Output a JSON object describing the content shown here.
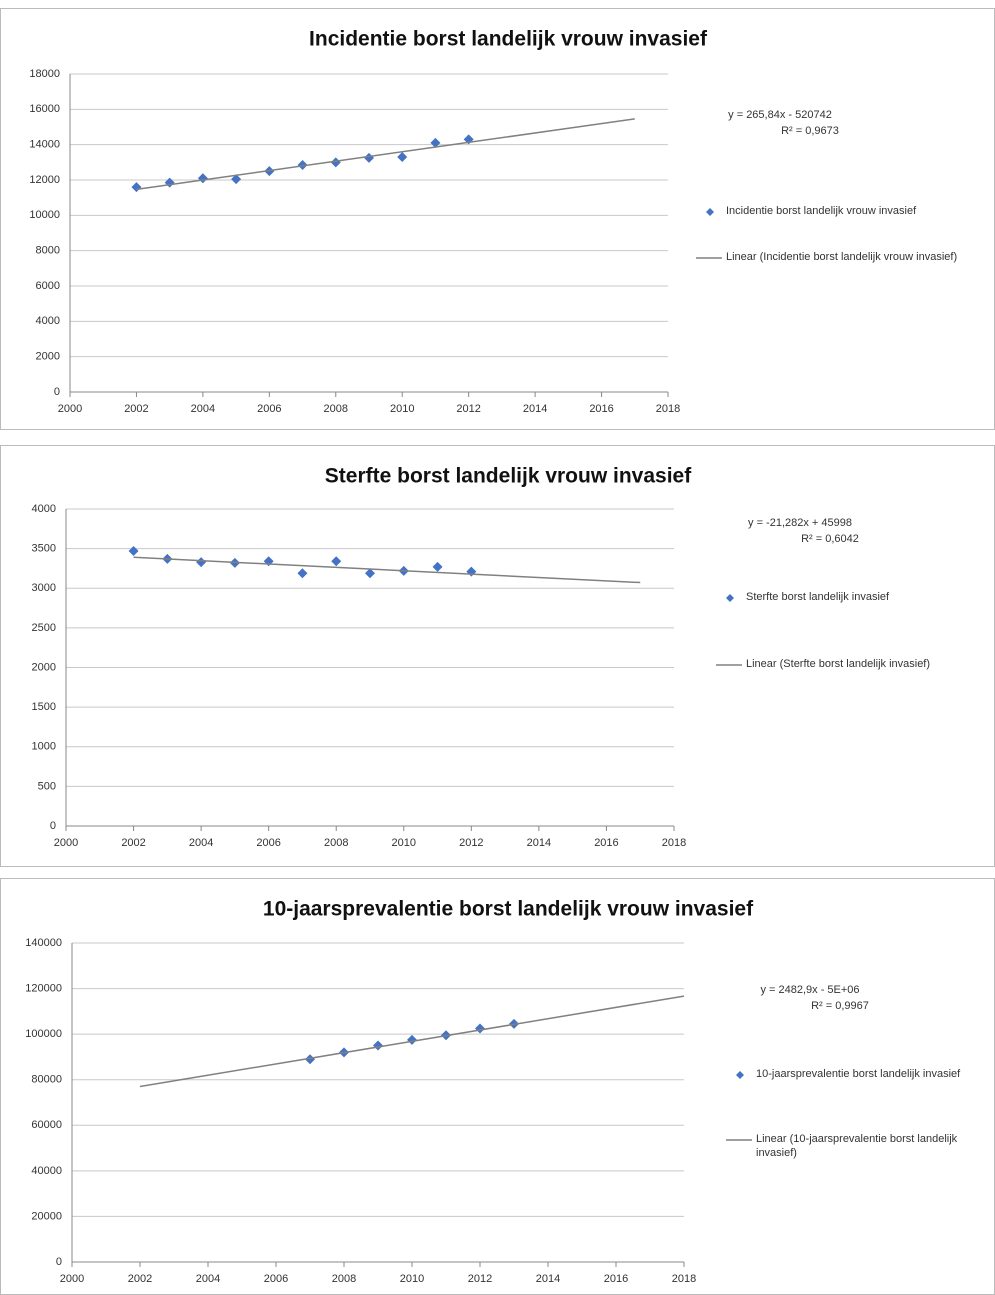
{
  "chart_data": [
    {
      "type": "scatter",
      "title": "Incidentie borst landelijk vrouw invasief",
      "annotations": [
        "y = 265,84x - 520742",
        "R² = 0,9673"
      ],
      "series": [
        {
          "name": "Incidentie borst landelijk vrouw invasief",
          "color": "#4472c4",
          "x": [
            2002,
            2003,
            2004,
            2005,
            2006,
            2007,
            2008,
            2009,
            2010,
            2011,
            2012
          ],
          "values": [
            11600,
            11850,
            12100,
            12050,
            12500,
            12850,
            13000,
            13250,
            13300,
            14100,
            14300
          ]
        },
        {
          "name": "Linear (Incidentie borst landelijk vrouw invasief)",
          "color": "#808080",
          "style": "line",
          "x": [
            2002,
            2017
          ],
          "values": [
            11470,
            15460
          ]
        }
      ],
      "xlim": [
        2000,
        2018
      ],
      "xticks": [
        2000,
        2002,
        2004,
        2006,
        2008,
        2010,
        2012,
        2014,
        2016,
        2018
      ],
      "ylim": [
        0,
        18000
      ],
      "yticks": [
        0,
        2000,
        4000,
        6000,
        8000,
        10000,
        12000,
        14000,
        16000,
        18000
      ],
      "grid": true
    },
    {
      "type": "scatter",
      "title": "Sterfte borst landelijk vrouw invasief",
      "annotations": [
        "y = -21,282x + 45998",
        "R² = 0,6042"
      ],
      "series": [
        {
          "name": "Sterfte borst landelijk invasief",
          "color": "#4472c4",
          "x": [
            2002,
            2003,
            2004,
            2005,
            2006,
            2007,
            2008,
            2009,
            2010,
            2011,
            2012
          ],
          "values": [
            3470,
            3370,
            3330,
            3320,
            3340,
            3190,
            3340,
            3190,
            3220,
            3270,
            3210
          ]
        },
        {
          "name": "Linear (Sterfte borst landelijk invasief)",
          "color": "#808080",
          "style": "line",
          "x": [
            2002,
            2017
          ],
          "values": [
            3391,
            3072
          ]
        }
      ],
      "xlim": [
        2000,
        2018
      ],
      "xticks": [
        2000,
        2002,
        2004,
        2006,
        2008,
        2010,
        2012,
        2014,
        2016,
        2018
      ],
      "ylim": [
        0,
        4000
      ],
      "yticks": [
        0,
        500,
        1000,
        1500,
        2000,
        2500,
        3000,
        3500,
        4000
      ],
      "grid": true
    },
    {
      "type": "scatter",
      "title": "10-jaarsprevalentie borst landelijk vrouw invasief",
      "annotations": [
        "y = 2482,9x - 5E+06",
        "R² = 0,9967"
      ],
      "series": [
        {
          "name": "10-jaarsprevalentie borst landelijk invasief",
          "color": "#4472c4",
          "x": [
            2007,
            2008,
            2009,
            2010,
            2011,
            2012,
            2013
          ],
          "values": [
            89000,
            92000,
            95000,
            97500,
            99500,
            102500,
            104500
          ]
        },
        {
          "name": "Linear (10-jaarsprevalentie borst landelijk invasief)",
          "color": "#808080",
          "style": "line",
          "x": [
            2002,
            2018
          ],
          "values": [
            77000,
            116700
          ]
        }
      ],
      "xlim": [
        2000,
        2018
      ],
      "xticks": [
        2000,
        2002,
        2004,
        2006,
        2008,
        2010,
        2012,
        2014,
        2016,
        2018
      ],
      "ylim": [
        0,
        140000
      ],
      "yticks": [
        0,
        20000,
        40000,
        60000,
        80000,
        100000,
        120000,
        140000
      ],
      "grid": true
    }
  ]
}
